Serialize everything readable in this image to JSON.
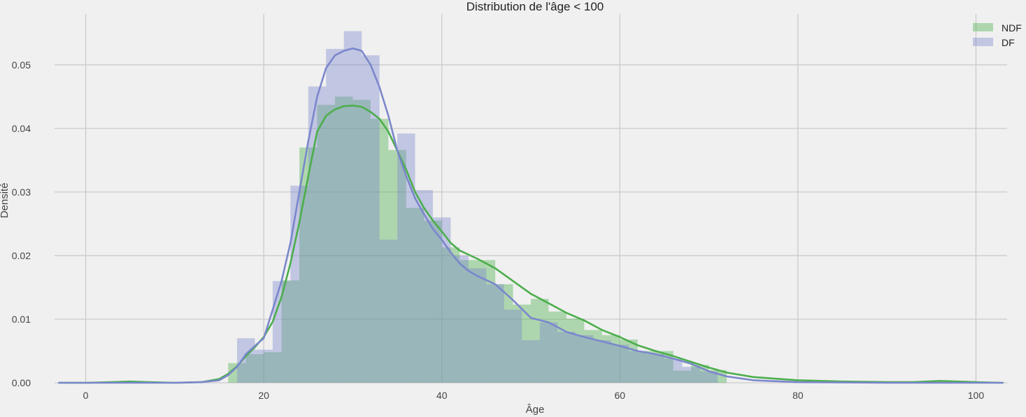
{
  "chart_data": {
    "type": "histogram",
    "title": "Distribution de l'âge < 100",
    "xlabel": "Âge",
    "ylabel": "Densité",
    "xlim": [
      -3.5,
      103.5
    ],
    "ylim": [
      0,
      0.058
    ],
    "xticks": [
      0,
      20,
      40,
      60,
      80,
      100
    ],
    "yticks": [
      0.0,
      0.01,
      0.02,
      0.03,
      0.04,
      0.05
    ],
    "ytick_labels": [
      "0.00",
      "0.01",
      "0.02",
      "0.03",
      "0.04",
      "0.05"
    ],
    "grid": true,
    "legend_position": "top-right",
    "series": [
      {
        "name": "NDF",
        "color": "#4cae4c",
        "bin_width": 2,
        "bins_start": [
          16,
          18,
          20,
          22,
          24,
          26,
          28,
          30,
          32,
          34,
          36,
          38,
          40,
          42,
          44,
          46,
          48,
          50,
          52,
          54,
          56,
          58,
          60,
          62,
          64,
          66,
          68,
          70
        ],
        "hist": [
          0.0031,
          0.0045,
          0.0048,
          0.0161,
          0.037,
          0.0437,
          0.045,
          0.0445,
          0.0415,
          0.0366,
          0.0275,
          0.0255,
          0.0213,
          0.0193,
          0.0193,
          0.0155,
          0.0123,
          0.0132,
          0.0112,
          0.0101,
          0.0083,
          0.0075,
          0.0068,
          0.005,
          0.005,
          0.0019,
          0.0028,
          0.002
        ],
        "kde_x": [
          -3,
          0,
          3,
          5,
          7,
          10,
          13,
          15,
          16,
          17,
          18,
          19,
          20,
          21,
          22,
          23,
          24,
          25,
          26,
          27,
          28,
          29,
          30,
          31,
          32,
          33,
          34,
          35,
          36,
          37,
          38,
          39,
          40,
          41,
          42,
          44,
          46,
          48,
          50,
          52,
          54,
          56,
          58,
          60,
          62,
          64,
          66,
          68,
          70,
          72,
          75,
          80,
          85,
          90,
          93,
          96,
          100,
          103
        ],
        "kde_y": [
          0.0,
          0.0,
          0.0001,
          0.0002,
          0.0001,
          0.0,
          0.0001,
          0.0006,
          0.0014,
          0.0026,
          0.0042,
          0.0056,
          0.0072,
          0.0096,
          0.0135,
          0.0188,
          0.0252,
          0.0325,
          0.0395,
          0.042,
          0.043,
          0.0435,
          0.0436,
          0.0434,
          0.0426,
          0.0415,
          0.0395,
          0.0365,
          0.0335,
          0.03,
          0.0275,
          0.0255,
          0.0238,
          0.022,
          0.0208,
          0.0195,
          0.018,
          0.016,
          0.014,
          0.0125,
          0.011,
          0.0098,
          0.0083,
          0.0072,
          0.0059,
          0.005,
          0.0042,
          0.0033,
          0.0024,
          0.0016,
          0.0009,
          0.0004,
          0.0002,
          0.0001,
          0.0001,
          0.0003,
          0.0001,
          0.0
        ]
      },
      {
        "name": "DF",
        "color": "#7b87cc",
        "bin_width": 2,
        "bins_start": [
          17,
          19,
          21,
          23,
          25,
          27,
          29,
          31,
          33,
          35,
          37,
          39,
          41,
          43,
          45,
          47,
          49,
          51,
          53,
          55,
          57,
          59,
          61,
          63,
          65,
          67,
          69
        ],
        "hist": [
          0.007,
          0.0052,
          0.016,
          0.031,
          0.0466,
          0.0525,
          0.0553,
          0.0515,
          0.0225,
          0.0392,
          0.0303,
          0.026,
          0.02,
          0.018,
          0.0155,
          0.0115,
          0.0067,
          0.0095,
          0.008,
          0.0075,
          0.0067,
          0.006,
          0.005,
          0.0045,
          0.0038,
          0.0025,
          0.0018
        ],
        "kde_x": [
          -3,
          0,
          5,
          10,
          13,
          15,
          16,
          17,
          18,
          19,
          20,
          21,
          22,
          23,
          24,
          25,
          26,
          27,
          28,
          29,
          30,
          31,
          32,
          33,
          34,
          35,
          36,
          37,
          38,
          39,
          40,
          41,
          42,
          43,
          44,
          46,
          48,
          50,
          52,
          54,
          56,
          58,
          60,
          62,
          64,
          66,
          68,
          70,
          72,
          75,
          80,
          90,
          100,
          103
        ],
        "kde_y": [
          0.0,
          0.0,
          0.0,
          0.0,
          0.0001,
          0.0004,
          0.0012,
          0.0025,
          0.0045,
          0.0058,
          0.007,
          0.0115,
          0.016,
          0.022,
          0.03,
          0.038,
          0.045,
          0.0495,
          0.0515,
          0.0522,
          0.0526,
          0.0522,
          0.05,
          0.0465,
          0.042,
          0.0365,
          0.0325,
          0.029,
          0.0265,
          0.0242,
          0.0225,
          0.0205,
          0.0188,
          0.0176,
          0.0168,
          0.0155,
          0.013,
          0.0102,
          0.0095,
          0.008,
          0.0072,
          0.0065,
          0.0058,
          0.005,
          0.0045,
          0.0038,
          0.003,
          0.0018,
          0.001,
          0.0004,
          0.0001,
          0.0,
          0.0,
          0.0
        ]
      }
    ]
  }
}
